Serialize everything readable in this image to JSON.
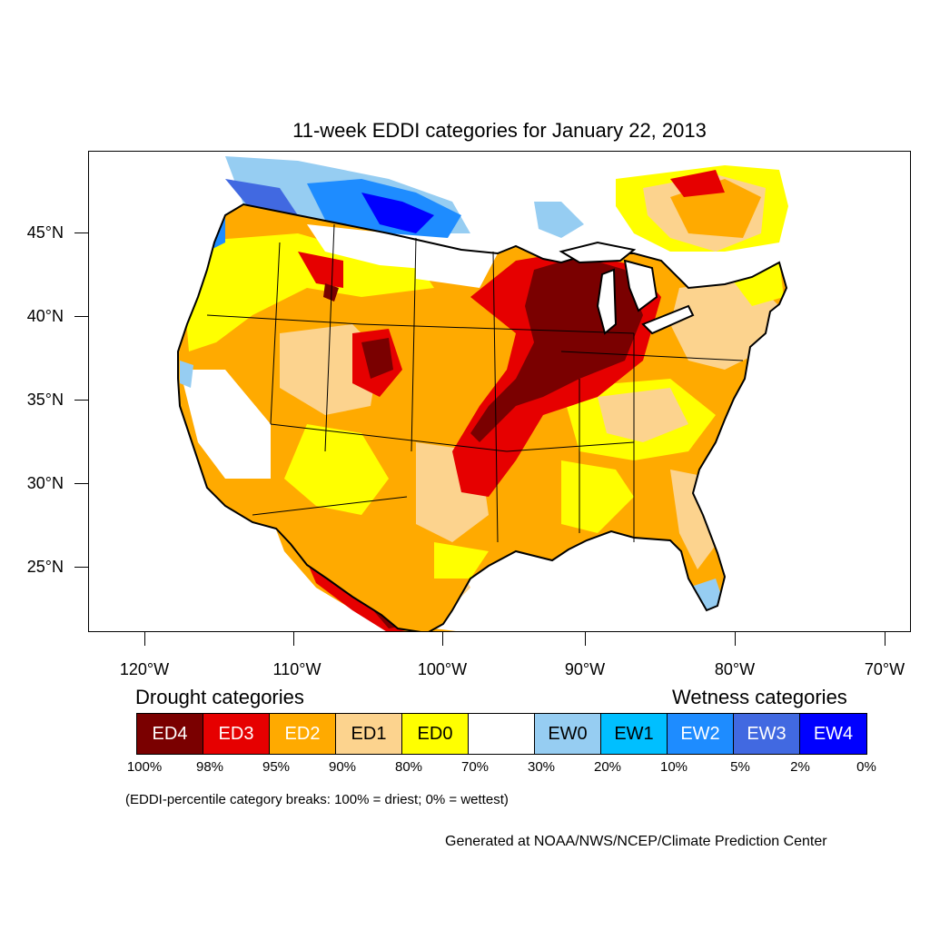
{
  "title": "11-week EDDI categories for January 22, 2013",
  "latitude_labels": [
    "45°N",
    "40°N",
    "35°N",
    "30°N",
    "25°N"
  ],
  "longitude_labels": [
    "120°W",
    "110°W",
    "100°W",
    "90°W",
    "80°W",
    "70°W"
  ],
  "legend": {
    "drought_heading": "Drought categories",
    "wetness_heading": "Wetness categories",
    "categories": [
      {
        "label": "ED4",
        "color": "#7a0000",
        "text_color": "#ffffff"
      },
      {
        "label": "ED3",
        "color": "#e60000",
        "text_color": "#ffffff"
      },
      {
        "label": "ED2",
        "color": "#ffaa00",
        "text_color": "#ffffff"
      },
      {
        "label": "ED1",
        "color": "#fcd38e",
        "text_color": "#000000"
      },
      {
        "label": "ED0",
        "color": "#ffff00",
        "text_color": "#000000"
      },
      {
        "label": "",
        "color": "#ffffff",
        "text_color": "#000000"
      },
      {
        "label": "EW0",
        "color": "#96cdf2",
        "text_color": "#000000"
      },
      {
        "label": "EW1",
        "color": "#00bfff",
        "text_color": "#000000"
      },
      {
        "label": "EW2",
        "color": "#1e8cff",
        "text_color": "#ffffff"
      },
      {
        "label": "EW3",
        "color": "#4169e1",
        "text_color": "#ffffff"
      },
      {
        "label": "EW4",
        "color": "#0000ff",
        "text_color": "#ffffff"
      }
    ],
    "percentile_breaks": [
      "100%",
      "98%",
      "95%",
      "90%",
      "80%",
      "70%",
      "30%",
      "20%",
      "10%",
      "5%",
      "2%",
      "0%"
    ],
    "note": "(EDDI-percentile category breaks: 100% = driest; 0% = wettest)"
  },
  "credit": "Generated at NOAA/NWS/NCEP/Climate Prediction Center"
}
